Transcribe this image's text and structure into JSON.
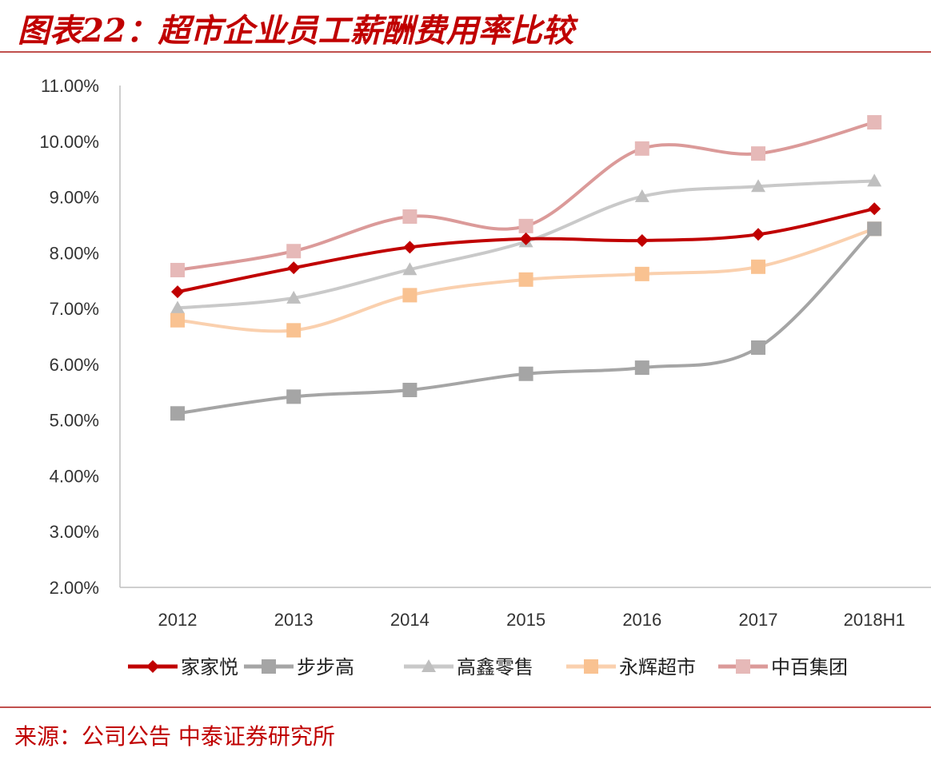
{
  "title": "图表22：超市企业员工薪酬费用率比较",
  "source": "来源：公司公告 中泰证券研究所",
  "chart_data": {
    "type": "line",
    "categories": [
      "2012",
      "2013",
      "2014",
      "2015",
      "2016",
      "2017",
      "2018H1"
    ],
    "ylim": [
      0.02,
      0.11
    ],
    "yticks": [
      "2.00%",
      "3.00%",
      "4.00%",
      "5.00%",
      "6.00%",
      "7.00%",
      "8.00%",
      "9.00%",
      "10.00%",
      "11.00%"
    ],
    "grid": false,
    "legend_position": "bottom",
    "series": [
      {
        "name": "家家悦",
        "color": "#C00000",
        "marker": "diamond",
        "marker_color": "#C00000",
        "values": [
          0.073,
          0.0773,
          0.081,
          0.0825,
          0.0822,
          0.0833,
          0.0879
        ]
      },
      {
        "name": "步步高",
        "color": "#A5A5A5",
        "marker": "square",
        "marker_color": "#A5A5A5",
        "values": [
          0.0512,
          0.0542,
          0.0554,
          0.0583,
          0.0594,
          0.063,
          0.0843
        ]
      },
      {
        "name": "高鑫零售",
        "color": "#C9C9C9",
        "marker": "triangle",
        "marker_color": "#BFBFBF",
        "values": [
          0.0701,
          0.0719,
          0.077,
          0.082,
          0.0901,
          0.0919,
          0.0929
        ]
      },
      {
        "name": "永辉超市",
        "color": "#FAD0AE",
        "marker": "square",
        "marker_color": "#F9C291",
        "values": [
          0.0679,
          0.0661,
          0.0724,
          0.0752,
          0.0762,
          0.0775,
          0.0843
        ]
      },
      {
        "name": "中百集团",
        "color": "#DB9A99",
        "marker": "square",
        "marker_color": "#E6B9B8",
        "values": [
          0.0769,
          0.0803,
          0.0865,
          0.0848,
          0.0987,
          0.0978,
          0.1034
        ]
      }
    ]
  }
}
